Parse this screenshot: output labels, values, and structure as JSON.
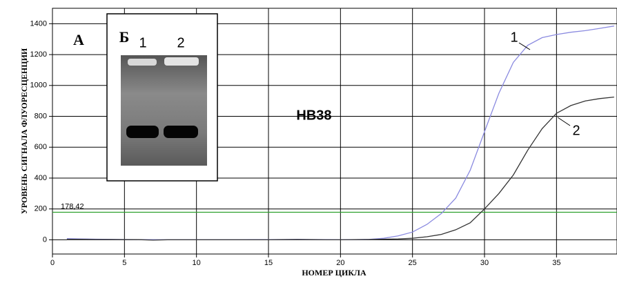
{
  "chart_data": {
    "type": "line",
    "title": "HB38",
    "xlabel": "НОМЕР ЦИКЛА",
    "ylabel": "УРОВЕНЬ СИГНАЛА ФЛУОРЕСЦЕНЦИИ",
    "x": [
      1,
      2,
      3,
      4,
      5,
      6,
      7,
      8,
      9,
      10,
      11,
      12,
      13,
      14,
      15,
      16,
      17,
      18,
      19,
      20,
      21,
      22,
      23,
      24,
      25,
      26,
      27,
      28,
      29,
      30,
      31,
      32,
      33,
      34,
      35,
      36,
      37,
      38,
      39
    ],
    "series": [
      {
        "name": "1",
        "color": "#8a8ae0",
        "values": [
          8,
          6,
          4,
          3,
          2,
          1,
          1,
          0,
          0,
          0,
          0,
          0,
          0,
          1,
          1,
          2,
          3,
          2,
          1,
          0,
          1,
          3,
          10,
          25,
          50,
          100,
          170,
          270,
          450,
          700,
          950,
          1150,
          1260,
          1310,
          1330,
          1345,
          1355,
          1370,
          1385
        ]
      },
      {
        "name": "2",
        "color": "#333333",
        "values": [
          3,
          3,
          2,
          2,
          1,
          1,
          -2,
          0,
          0,
          0,
          0,
          0,
          0,
          0,
          0,
          1,
          2,
          1,
          0,
          0,
          1,
          2,
          4,
          6,
          10,
          20,
          35,
          65,
          110,
          200,
          300,
          420,
          580,
          720,
          820,
          870,
          900,
          915,
          925
        ]
      }
    ],
    "threshold": {
      "value": 178.42,
      "label": "178,42",
      "color": "#2ca02c"
    },
    "xlim": [
      0,
      39.2
    ],
    "ylim": [
      -92,
      1500
    ],
    "xticks": [
      0,
      5,
      10,
      15,
      20,
      25,
      30,
      35
    ],
    "yticks": [
      0,
      200,
      400,
      600,
      800,
      1000,
      1200,
      1400
    ],
    "grid": true,
    "inset": {
      "panel_a": "А",
      "panel_b": "Б",
      "lanes": [
        "1",
        "2"
      ]
    }
  }
}
